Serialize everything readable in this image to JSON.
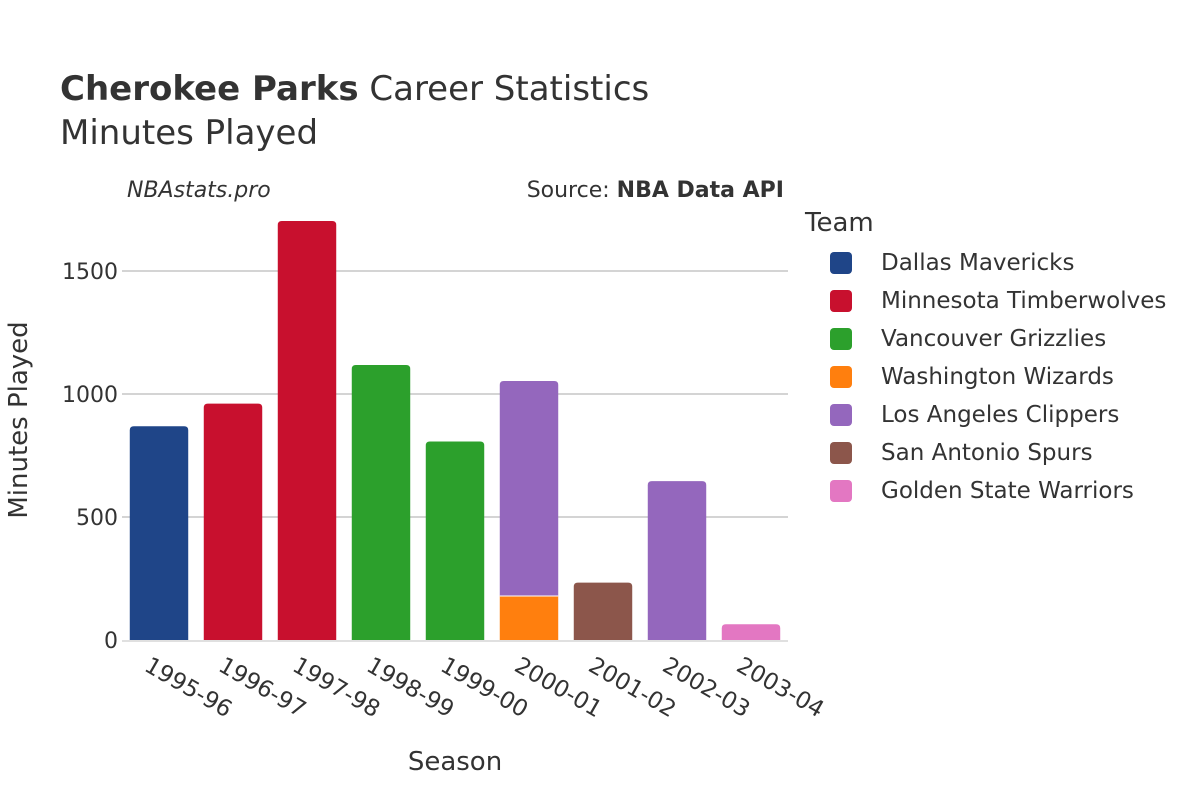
{
  "header": {
    "title_bold": "Cherokee Parks",
    "title_rest": "Career Statistics",
    "subtitle": "Minutes Played",
    "watermark": "NBAstats.pro",
    "source_prefix": "Source: ",
    "source_name": "NBA Data API"
  },
  "legend": {
    "title": "Team",
    "items": [
      {
        "label": "Dallas Mavericks",
        "color": "#1f4588"
      },
      {
        "label": "Minnesota Timberwolves",
        "color": "#c8102e"
      },
      {
        "label": "Vancouver Grizzlies",
        "color": "#2ca02c"
      },
      {
        "label": "Washington Wizards",
        "color": "#ff7f0e"
      },
      {
        "label": "Los Angeles Clippers",
        "color": "#9467bd"
      },
      {
        "label": "San Antonio Spurs",
        "color": "#8c564b"
      },
      {
        "label": "Golden State Warriors",
        "color": "#e377c2"
      }
    ]
  },
  "chart_data": {
    "type": "bar",
    "stacked": true,
    "xlabel": "Season",
    "ylabel": "Minutes Played",
    "ylim": [
      0,
      1760
    ],
    "yticks": [
      0,
      500,
      1000,
      1500
    ],
    "grid": true,
    "legend_position": "right",
    "categories": [
      "1995-96",
      "1996-97",
      "1997-98",
      "1998-99",
      "1999-00",
      "2000-01",
      "2001-02",
      "2002-03",
      "2003-04"
    ],
    "series": [
      {
        "name": "Dallas Mavericks",
        "color": "#1f4588",
        "values": [
          869,
          0,
          0,
          0,
          0,
          0,
          0,
          0,
          0
        ]
      },
      {
        "name": "Minnesota Timberwolves",
        "color": "#c8102e",
        "values": [
          0,
          961,
          1703,
          0,
          0,
          0,
          0,
          0,
          0
        ]
      },
      {
        "name": "Vancouver Grizzlies",
        "color": "#2ca02c",
        "values": [
          0,
          0,
          0,
          1118,
          807,
          0,
          0,
          0,
          0
        ]
      },
      {
        "name": "Washington Wizards",
        "color": "#ff7f0e",
        "values": [
          0,
          0,
          0,
          0,
          0,
          179,
          0,
          0,
          0
        ]
      },
      {
        "name": "Los Angeles Clippers",
        "color": "#9467bd",
        "values": [
          0,
          0,
          0,
          0,
          0,
          874,
          0,
          646,
          0
        ]
      },
      {
        "name": "San Antonio Spurs",
        "color": "#8c564b",
        "values": [
          0,
          0,
          0,
          0,
          0,
          0,
          233,
          0,
          0
        ]
      },
      {
        "name": "Golden State Warriors",
        "color": "#e377c2",
        "values": [
          0,
          0,
          0,
          0,
          0,
          0,
          0,
          0,
          64
        ]
      }
    ]
  }
}
